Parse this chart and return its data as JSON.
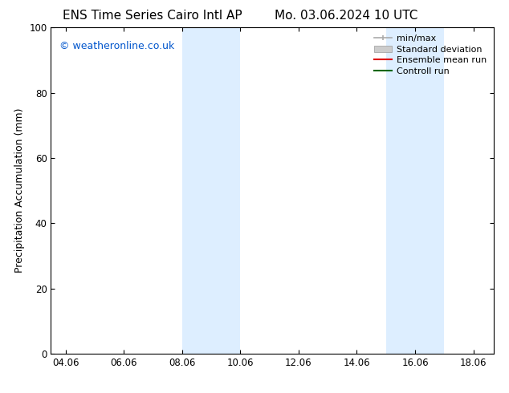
{
  "title_left": "ENS Time Series Cairo Intl AP",
  "title_right": "Mo. 03.06.2024 10 UTC",
  "ylabel": "Precipitation Accumulation (mm)",
  "watermark": "© weatheronline.co.uk",
  "watermark_color": "#0055cc",
  "xlim_left": 3.5,
  "xlim_right": 18.7,
  "ylim_bottom": 0,
  "ylim_top": 100,
  "yticks": [
    0,
    20,
    40,
    60,
    80,
    100
  ],
  "xtick_labels": [
    "04.06",
    "06.06",
    "08.06",
    "10.06",
    "12.06",
    "14.06",
    "16.06",
    "18.06"
  ],
  "xtick_positions": [
    4,
    6,
    8,
    10,
    12,
    14,
    16,
    18
  ],
  "bg_color": "#ffffff",
  "plot_bg_color": "#ffffff",
  "shaded_regions": [
    {
      "xmin": 8.0,
      "xmax": 10.0,
      "color": "#ddeeff"
    },
    {
      "xmin": 15.0,
      "xmax": 17.0,
      "color": "#ddeeff"
    }
  ],
  "legend_entries": [
    {
      "label": "min/max",
      "color": "#aaaaaa",
      "style": "errorbar"
    },
    {
      "label": "Standard deviation",
      "color": "#cccccc",
      "style": "bar"
    },
    {
      "label": "Ensemble mean run",
      "color": "#dd0000",
      "style": "line"
    },
    {
      "label": "Controll run",
      "color": "#006600",
      "style": "line"
    }
  ],
  "title_fontsize": 11,
  "axis_fontsize": 9,
  "tick_fontsize": 8.5,
  "watermark_fontsize": 9,
  "legend_fontsize": 8
}
